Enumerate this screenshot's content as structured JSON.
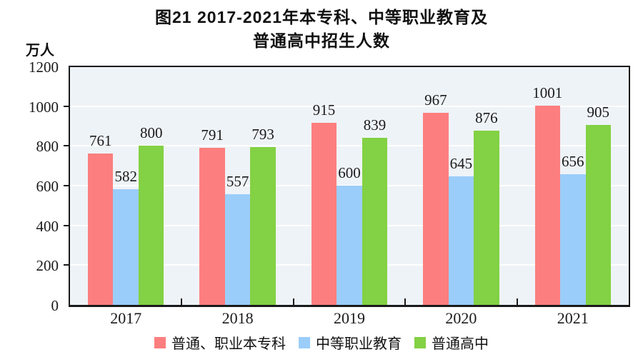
{
  "title": {
    "line1": "图21  2017-2021年本专科、中等职业教育及",
    "line2": "普通高中招生人数"
  },
  "chart_data": {
    "type": "bar",
    "title": "图21 2017-2021年本专科、中等职业教育及普通高中招生人数",
    "unit_label": "万人",
    "xlabel": "",
    "ylabel": "万人",
    "categories": [
      "2017",
      "2018",
      "2019",
      "2020",
      "2021"
    ],
    "series": [
      {
        "name": "普通、职业本专科",
        "color": "#FD7E7E",
        "values": [
          761,
          791,
          915,
          967,
          1001
        ]
      },
      {
        "name": "中等职业教育",
        "color": "#9BCDFA",
        "values": [
          582,
          557,
          600,
          645,
          656
        ]
      },
      {
        "name": "普通高中",
        "color": "#83D144",
        "values": [
          800,
          793,
          839,
          876,
          905
        ]
      }
    ],
    "ylim": [
      0,
      1200
    ],
    "yticks": [
      0,
      200,
      400,
      600,
      800,
      1000,
      1200
    ],
    "grid": true,
    "gridline_color": "#FFFFFF",
    "plot_background": "#EEF3F8",
    "axis_color": "#1A1A1A",
    "legend_position": "bottom",
    "value_labels_shown": true
  }
}
